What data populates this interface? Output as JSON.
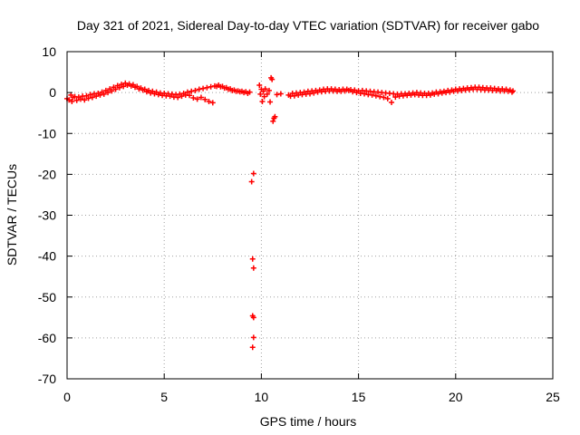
{
  "chart_data": {
    "type": "scatter",
    "title": "Day 321 of 2021, Sidereal Day-to-day VTEC variation (SDTVAR) for receiver gabo",
    "xlabel": "GPS time / hours",
    "ylabel": "SDTVAR / TECUs",
    "xlim": [
      0,
      25
    ],
    "ylim": [
      -70,
      10
    ],
    "x_ticks": [
      0,
      5,
      10,
      15,
      20,
      25
    ],
    "y_ticks": [
      10,
      0,
      -10,
      -20,
      -30,
      -40,
      -50,
      -60,
      -70
    ],
    "x_tick_labels": [
      "0",
      "5",
      "10",
      "15",
      "20",
      "25"
    ],
    "y_tick_labels": [
      "10",
      "0",
      "-10",
      "-20",
      "-30",
      "-40",
      "-50",
      "-60",
      "-70"
    ],
    "grid": true,
    "marker": "+",
    "colors": {
      "series": "#ff0000",
      "grid": "#a0a0a0",
      "axes": "#000000"
    },
    "series": [
      {
        "name": "SDTVAR",
        "points": [
          [
            0.0,
            -1.5
          ],
          [
            0.1,
            -1.8
          ],
          [
            0.2,
            -0.6
          ],
          [
            0.25,
            -2.2
          ],
          [
            0.3,
            -1.2
          ],
          [
            0.4,
            -1.0
          ],
          [
            0.5,
            -1.9
          ],
          [
            0.6,
            -1.1
          ],
          [
            0.7,
            -1.6
          ],
          [
            0.8,
            -0.9
          ],
          [
            0.9,
            -1.8
          ],
          [
            1.0,
            -0.8
          ],
          [
            1.1,
            -1.4
          ],
          [
            1.2,
            -0.5
          ],
          [
            1.3,
            -1.2
          ],
          [
            1.4,
            -0.3
          ],
          [
            1.5,
            -0.9
          ],
          [
            1.6,
            -0.2
          ],
          [
            1.7,
            -0.6
          ],
          [
            1.8,
            0.1
          ],
          [
            1.9,
            -0.4
          ],
          [
            2.0,
            0.5
          ],
          [
            2.1,
            0.0
          ],
          [
            2.2,
            0.9
          ],
          [
            2.3,
            0.4
          ],
          [
            2.4,
            1.3
          ],
          [
            2.5,
            0.8
          ],
          [
            2.6,
            1.7
          ],
          [
            2.7,
            1.2
          ],
          [
            2.8,
            2.0
          ],
          [
            2.9,
            1.5
          ],
          [
            3.0,
            2.3
          ],
          [
            3.1,
            1.8
          ],
          [
            3.2,
            2.1
          ],
          [
            3.3,
            1.6
          ],
          [
            3.4,
            1.9
          ],
          [
            3.5,
            1.3
          ],
          [
            3.6,
            1.5
          ],
          [
            3.7,
            0.9
          ],
          [
            3.8,
            1.1
          ],
          [
            3.9,
            0.6
          ],
          [
            4.0,
            0.8
          ],
          [
            4.1,
            0.2
          ],
          [
            4.2,
            0.5
          ],
          [
            4.3,
            -0.1
          ],
          [
            4.4,
            0.3
          ],
          [
            4.5,
            -0.3
          ],
          [
            4.6,
            0.1
          ],
          [
            4.7,
            -0.5
          ],
          [
            4.8,
            -0.1
          ],
          [
            4.9,
            -0.7
          ],
          [
            5.0,
            -0.2
          ],
          [
            5.1,
            -0.8
          ],
          [
            5.2,
            -0.3
          ],
          [
            5.3,
            -0.9
          ],
          [
            5.4,
            -0.4
          ],
          [
            5.5,
            -1.1
          ],
          [
            5.6,
            -0.5
          ],
          [
            5.7,
            -1.2
          ],
          [
            5.8,
            -0.4
          ],
          [
            5.9,
            -0.9
          ],
          [
            6.0,
            -0.2
          ],
          [
            6.1,
            -0.6
          ],
          [
            6.2,
            0.1
          ],
          [
            6.3,
            -0.7
          ],
          [
            6.4,
            0.3
          ],
          [
            6.5,
            -1.3
          ],
          [
            6.6,
            0.5
          ],
          [
            6.7,
            -1.6
          ],
          [
            6.8,
            0.8
          ],
          [
            6.9,
            -1.2
          ],
          [
            7.0,
            1.0
          ],
          [
            7.1,
            -1.7
          ],
          [
            7.2,
            1.2
          ],
          [
            7.3,
            -2.2
          ],
          [
            7.4,
            1.4
          ],
          [
            7.5,
            -2.5
          ],
          [
            7.6,
            1.6
          ],
          [
            7.7,
            1.5
          ],
          [
            7.8,
            1.8
          ],
          [
            7.9,
            1.4
          ],
          [
            8.0,
            1.5
          ],
          [
            8.1,
            1.1
          ],
          [
            8.2,
            1.2
          ],
          [
            8.3,
            0.8
          ],
          [
            8.4,
            0.9
          ],
          [
            8.5,
            0.5
          ],
          [
            8.6,
            0.6
          ],
          [
            8.7,
            0.3
          ],
          [
            8.8,
            0.4
          ],
          [
            8.9,
            0.2
          ],
          [
            9.0,
            0.3
          ],
          [
            9.1,
            0.0
          ],
          [
            9.2,
            0.2
          ],
          [
            9.3,
            -0.2
          ],
          [
            9.4,
            0.1
          ],
          [
            9.6,
            -19.8
          ],
          [
            9.5,
            -21.8
          ],
          [
            9.55,
            -40.7
          ],
          [
            9.6,
            -42.9
          ],
          [
            9.55,
            -54.6
          ],
          [
            9.6,
            -55.0
          ],
          [
            9.6,
            -59.9
          ],
          [
            9.55,
            -62.3
          ],
          [
            9.9,
            1.8
          ],
          [
            9.95,
            -0.4
          ],
          [
            10.0,
            0.8
          ],
          [
            10.05,
            -2.2
          ],
          [
            10.1,
            0.3
          ],
          [
            10.15,
            -1.0
          ],
          [
            10.2,
            0.9
          ],
          [
            10.3,
            -0.4
          ],
          [
            10.4,
            0.5
          ],
          [
            10.5,
            3.6
          ],
          [
            10.55,
            3.2
          ],
          [
            10.45,
            -2.3
          ],
          [
            10.6,
            -7.0
          ],
          [
            10.65,
            -6.3
          ],
          [
            10.7,
            -5.9
          ],
          [
            10.8,
            -0.5
          ],
          [
            11.0,
            -0.3
          ],
          [
            11.4,
            -0.6
          ],
          [
            11.5,
            -0.9
          ],
          [
            11.6,
            -0.2
          ],
          [
            11.7,
            -0.8
          ],
          [
            11.8,
            -0.1
          ],
          [
            11.9,
            -0.6
          ],
          [
            12.0,
            0.0
          ],
          [
            12.1,
            -0.5
          ],
          [
            12.2,
            0.1
          ],
          [
            12.3,
            -0.4
          ],
          [
            12.4,
            0.3
          ],
          [
            12.5,
            -0.3
          ],
          [
            12.6,
            0.4
          ],
          [
            12.7,
            -0.1
          ],
          [
            12.8,
            0.5
          ],
          [
            12.9,
            0.1
          ],
          [
            13.0,
            0.6
          ],
          [
            13.1,
            0.2
          ],
          [
            13.2,
            0.8
          ],
          [
            13.3,
            0.3
          ],
          [
            13.4,
            0.9
          ],
          [
            13.5,
            0.4
          ],
          [
            13.6,
            0.9
          ],
          [
            13.7,
            0.4
          ],
          [
            13.8,
            0.8
          ],
          [
            13.9,
            0.3
          ],
          [
            14.0,
            0.7
          ],
          [
            14.1,
            0.3
          ],
          [
            14.2,
            0.8
          ],
          [
            14.3,
            0.4
          ],
          [
            14.4,
            0.8
          ],
          [
            14.5,
            0.5
          ],
          [
            14.6,
            0.7
          ],
          [
            14.7,
            0.2
          ],
          [
            14.8,
            0.6
          ],
          [
            14.9,
            0.0
          ],
          [
            15.0,
            0.4
          ],
          [
            15.1,
            -0.2
          ],
          [
            15.2,
            0.5
          ],
          [
            15.3,
            -0.3
          ],
          [
            15.4,
            0.4
          ],
          [
            15.5,
            -0.5
          ],
          [
            15.6,
            0.3
          ],
          [
            15.7,
            -0.6
          ],
          [
            15.8,
            0.2
          ],
          [
            15.9,
            -0.8
          ],
          [
            16.0,
            0.1
          ],
          [
            16.1,
            -1.0
          ],
          [
            16.2,
            0.0
          ],
          [
            16.3,
            -1.2
          ],
          [
            16.4,
            -0.1
          ],
          [
            16.5,
            -1.5
          ],
          [
            16.6,
            -0.2
          ],
          [
            16.7,
            -2.4
          ],
          [
            16.8,
            -0.3
          ],
          [
            16.9,
            -1.1
          ],
          [
            17.0,
            -0.4
          ],
          [
            17.1,
            -0.9
          ],
          [
            17.2,
            -0.3
          ],
          [
            17.3,
            -0.8
          ],
          [
            17.4,
            -0.3
          ],
          [
            17.5,
            -0.7
          ],
          [
            17.6,
            -0.2
          ],
          [
            17.7,
            -0.6
          ],
          [
            17.8,
            -0.1
          ],
          [
            17.9,
            -0.5
          ],
          [
            18.0,
            0.0
          ],
          [
            18.1,
            -0.6
          ],
          [
            18.2,
            -0.1
          ],
          [
            18.3,
            -0.7
          ],
          [
            18.4,
            -0.2
          ],
          [
            18.5,
            -0.7
          ],
          [
            18.6,
            -0.2
          ],
          [
            18.7,
            -0.6
          ],
          [
            18.8,
            -0.1
          ],
          [
            18.9,
            -0.4
          ],
          [
            19.0,
            0.1
          ],
          [
            19.1,
            -0.3
          ],
          [
            19.2,
            0.2
          ],
          [
            19.3,
            -0.1
          ],
          [
            19.4,
            0.3
          ],
          [
            19.5,
            0.0
          ],
          [
            19.6,
            0.5
          ],
          [
            19.7,
            0.1
          ],
          [
            19.8,
            0.6
          ],
          [
            19.9,
            0.3
          ],
          [
            20.0,
            0.8
          ],
          [
            20.1,
            0.4
          ],
          [
            20.2,
            0.9
          ],
          [
            20.3,
            0.5
          ],
          [
            20.4,
            1.0
          ],
          [
            20.5,
            0.6
          ],
          [
            20.6,
            1.1
          ],
          [
            20.7,
            0.7
          ],
          [
            20.8,
            1.2
          ],
          [
            20.9,
            0.8
          ],
          [
            21.0,
            1.3
          ],
          [
            21.1,
            0.8
          ],
          [
            21.2,
            1.3
          ],
          [
            21.3,
            0.7
          ],
          [
            21.4,
            1.2
          ],
          [
            21.5,
            0.6
          ],
          [
            21.6,
            1.1
          ],
          [
            21.7,
            0.6
          ],
          [
            21.8,
            1.1
          ],
          [
            21.9,
            0.5
          ],
          [
            22.0,
            1.0
          ],
          [
            22.1,
            0.5
          ],
          [
            22.2,
            0.9
          ],
          [
            22.3,
            0.4
          ],
          [
            22.4,
            0.9
          ],
          [
            22.5,
            0.4
          ],
          [
            22.6,
            0.8
          ],
          [
            22.7,
            0.3
          ],
          [
            22.8,
            0.6
          ],
          [
            22.9,
            0.1
          ],
          [
            22.95,
            0.4
          ]
        ]
      }
    ]
  }
}
